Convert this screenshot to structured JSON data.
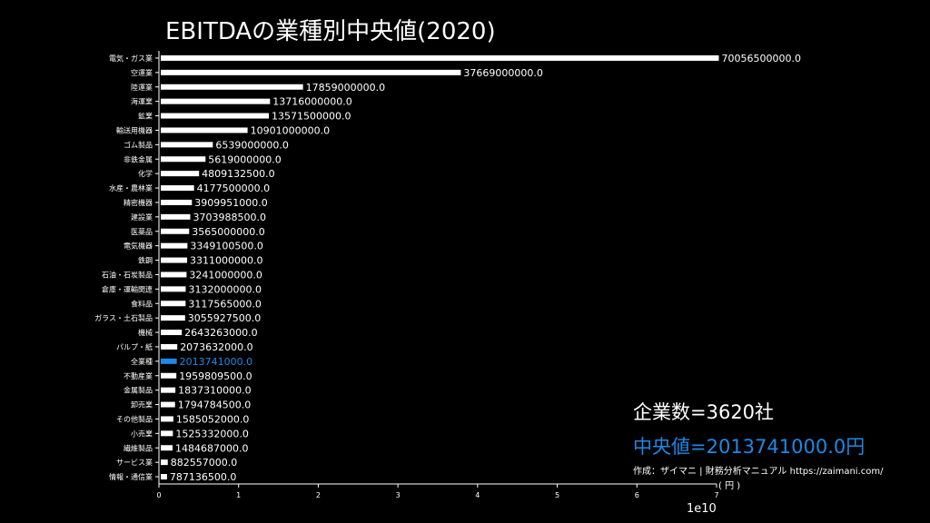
{
  "chart_data": {
    "type": "bar",
    "orientation": "horizontal",
    "title": "EBITDAの業種別中央値(2020)",
    "categories": [
      "電気・ガス業",
      "空運業",
      "陸運業",
      "海運業",
      "鉱業",
      "輸送用機器",
      "ゴム製品",
      "非鉄金属",
      "化学",
      "水産・農林業",
      "精密機器",
      "建設業",
      "医薬品",
      "電気機器",
      "鉄鋼",
      "石油・石炭製品",
      "倉庫・運輸関連",
      "食料品",
      "ガラス・土石製品",
      "機械",
      "パルプ・紙",
      "全業種",
      "不動産業",
      "金属製品",
      "卸売業",
      "その他製品",
      "小売業",
      "繊維製品",
      "サービス業",
      "情報・通信業"
    ],
    "values": [
      70056500000.0,
      37669000000.0,
      17859000000.0,
      13716000000.0,
      13571500000.0,
      10901000000.0,
      6539000000.0,
      5619000000.0,
      4809132500.0,
      4177500000.0,
      3909951000.0,
      3703988500.0,
      3565000000.0,
      3349100500.0,
      3311000000.0,
      3241000000.0,
      3132000000.0,
      3117565000.0,
      3055927500.0,
      2643263000.0,
      2073632000.0,
      2013741000.0,
      1959809500.0,
      1837310000.0,
      1794784500.0,
      1585052000.0,
      1525332000.0,
      1484687000.0,
      882557000.0,
      787136500.0
    ],
    "value_labels": [
      "70056500000.0",
      "37669000000.0",
      "17859000000.0",
      "13716000000.0",
      "13571500000.0",
      "10901000000.0",
      "6539000000.0",
      "5619000000.0",
      "4809132500.0",
      "4177500000.0",
      "3909951000.0",
      "3703988500.0",
      "3565000000.0",
      "3349100500.0",
      "3311000000.0",
      "3241000000.0",
      "3132000000.0",
      "3117565000.0",
      "3055927500.0",
      "2643263000.0",
      "2073632000.0",
      "2013741000.0",
      "1959809500.0",
      "1837310000.0",
      "1794784500.0",
      "1585052000.0",
      "1525332000.0",
      "1484687000.0",
      "882557000.0",
      "787136500.0"
    ],
    "highlight_category": "全業種",
    "xlim": [
      0,
      7
    ],
    "x_ticks": [
      "0",
      "1",
      "2",
      "3",
      "4",
      "5",
      "6",
      "7"
    ],
    "x_scale_label": "1e10",
    "bar_color": "#ffffff",
    "highlight_color": "#1e88e5"
  },
  "annotations": {
    "company_count": "企業数=3620社",
    "median_label": "中央値=2013741000.0円",
    "credit": "作成：ザイマニ | 財務分析マニュアル https://zaimani.com/",
    "unit": "( 円 )"
  }
}
